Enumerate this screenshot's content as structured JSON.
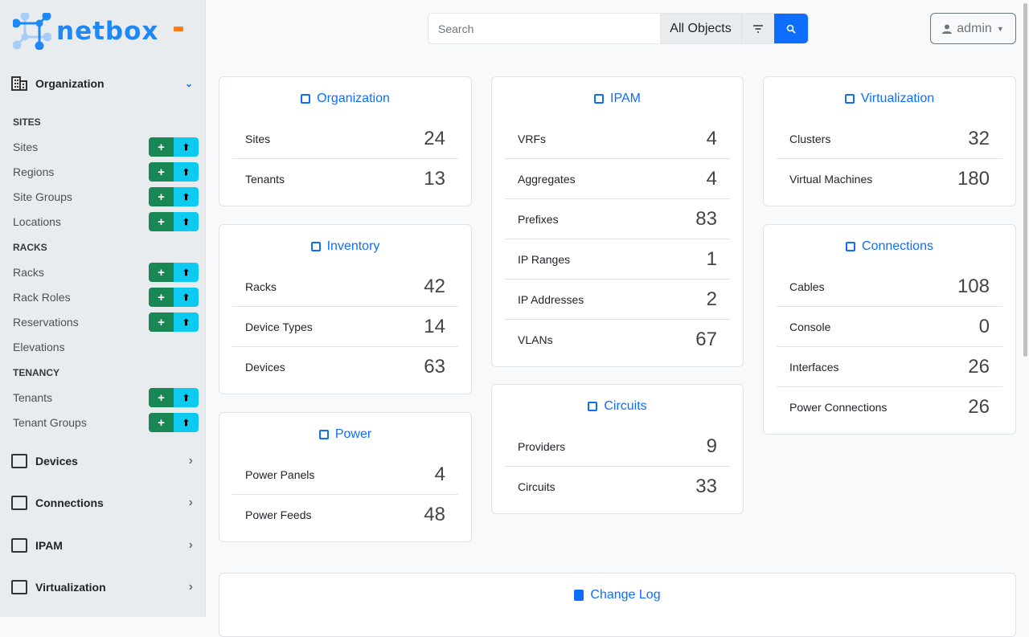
{
  "brand": {
    "name": "netbox",
    "accent": "#0d6efd"
  },
  "sidebar": {
    "organization": "Organization",
    "groups": [
      {
        "label": "SITES",
        "items": [
          {
            "label": "Sites",
            "buttons": true
          },
          {
            "label": "Regions",
            "buttons": true
          },
          {
            "label": "Site Groups",
            "buttons": true
          },
          {
            "label": "Locations",
            "buttons": true
          }
        ]
      },
      {
        "label": "RACKS",
        "items": [
          {
            "label": "Racks",
            "buttons": true
          },
          {
            "label": "Rack Roles",
            "buttons": true
          },
          {
            "label": "Reservations",
            "buttons": true
          },
          {
            "label": "Elevations",
            "buttons": false
          }
        ]
      },
      {
        "label": "TENANCY",
        "items": [
          {
            "label": "Tenants",
            "buttons": true
          },
          {
            "label": "Tenant Groups",
            "buttons": true
          }
        ]
      }
    ],
    "sections": [
      "Devices",
      "Connections",
      "IPAM",
      "Virtualization"
    ],
    "add_symbol": "+",
    "import_symbol": "⬆"
  },
  "search": {
    "placeholder": "Search",
    "scope": "All Objects"
  },
  "user": {
    "name": "admin"
  },
  "cards": [
    {
      "title": "Organization",
      "icon": "building-icon",
      "rows": [
        [
          "Sites",
          "24"
        ],
        [
          "Tenants",
          "13"
        ]
      ]
    },
    {
      "title": "Inventory",
      "icon": "server-icon",
      "rows": [
        [
          "Racks",
          "42"
        ],
        [
          "Device Types",
          "14"
        ],
        [
          "Devices",
          "63"
        ]
      ]
    },
    {
      "title": "Power",
      "icon": "lightning-icon",
      "rows": [
        [
          "Power Panels",
          "4"
        ],
        [
          "Power Feeds",
          "48"
        ]
      ]
    },
    {
      "title": "IPAM",
      "icon": "ipam-icon",
      "rows": [
        [
          "VRFs",
          "4"
        ],
        [
          "Aggregates",
          "4"
        ],
        [
          "Prefixes",
          "83"
        ],
        [
          "IP Ranges",
          "1"
        ],
        [
          "IP Addresses",
          "2"
        ],
        [
          "VLANs",
          "67"
        ]
      ]
    },
    {
      "title": "Circuits",
      "icon": "transit-icon",
      "rows": [
        [
          "Providers",
          "9"
        ],
        [
          "Circuits",
          "33"
        ]
      ]
    },
    {
      "title": "Virtualization",
      "icon": "monitor-icon",
      "rows": [
        [
          "Clusters",
          "32"
        ],
        [
          "Virtual Machines",
          "180"
        ]
      ]
    },
    {
      "title": "Connections",
      "icon": "cable-icon",
      "rows": [
        [
          "Cables",
          "108"
        ],
        [
          "Console",
          "0"
        ],
        [
          "Interfaces",
          "26"
        ],
        [
          "Power Connections",
          "26"
        ]
      ]
    }
  ],
  "changelog": {
    "title": "Change Log"
  }
}
